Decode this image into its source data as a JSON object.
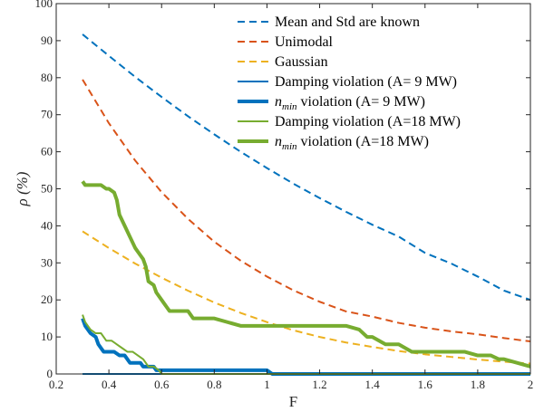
{
  "chart_data": {
    "type": "line",
    "xlabel": "F",
    "ylabel": "ρ (%)",
    "xlim": [
      0.2,
      2
    ],
    "ylim": [
      0,
      100
    ],
    "xticks": [
      0.2,
      0.4,
      0.6,
      0.8,
      1,
      1.2,
      1.4,
      1.6,
      1.8,
      2
    ],
    "xtick_labels": [
      "0.2",
      "0.4",
      "0.6",
      "0.8",
      "1",
      "1.2",
      "1.4",
      "1.6",
      "1.8",
      "2"
    ],
    "yticks": [
      0,
      10,
      20,
      30,
      40,
      50,
      60,
      70,
      80,
      90,
      100
    ],
    "ytick_labels": [
      "0",
      "10",
      "20",
      "30",
      "40",
      "50",
      "60",
      "70",
      "80",
      "90",
      "100"
    ],
    "grid": false,
    "legend_position": "top-right",
    "series": [
      {
        "name": "Mean and Std are known",
        "color": "#0072BD",
        "dash": "dashed",
        "weight": "thin",
        "x": [
          0.3,
          0.4,
          0.5,
          0.6,
          0.7,
          0.8,
          0.9,
          1.0,
          1.1,
          1.2,
          1.3,
          1.4,
          1.5,
          1.6,
          1.7,
          1.8,
          1.9,
          2.0
        ],
        "y": [
          91.7,
          85.9,
          80.2,
          74.8,
          69.6,
          64.7,
          60.0,
          55.6,
          51.4,
          47.5,
          43.8,
          40.3,
          37.1,
          32.7,
          29.8,
          26.3,
          22.5,
          20.0
        ]
      },
      {
        "name": "Unimodal",
        "color": "#D95319",
        "dash": "dashed",
        "weight": "thin",
        "x": [
          0.3,
          0.4,
          0.5,
          0.6,
          0.7,
          0.8,
          0.9,
          1.0,
          1.1,
          1.2,
          1.3,
          1.4,
          1.5,
          1.6,
          1.7,
          1.8,
          1.9,
          2.0
        ],
        "y": [
          79.5,
          67.7,
          57.6,
          49.1,
          41.9,
          35.7,
          30.6,
          26.3,
          22.6,
          19.5,
          16.9,
          15.5,
          13.8,
          12.5,
          11.5,
          10.7,
          9.7,
          8.8
        ]
      },
      {
        "name": "Gaussian",
        "color": "#EDB120",
        "dash": "dashed",
        "weight": "thin",
        "x": [
          0.3,
          0.4,
          0.5,
          0.6,
          0.7,
          0.8,
          0.9,
          1.0,
          1.1,
          1.2,
          1.3,
          1.4,
          1.5,
          1.6,
          1.7,
          1.8,
          1.9,
          2.0
        ],
        "y": [
          38.5,
          34.0,
          29.8,
          26.0,
          22.5,
          19.3,
          16.5,
          14.0,
          11.8,
          10.0,
          8.5,
          7.3,
          6.2,
          5.3,
          4.6,
          3.9,
          3.3,
          2.8
        ]
      },
      {
        "name": "Damping violation (A= 9 MW)",
        "color": "#0072BD",
        "dash": "solid",
        "weight": "thin",
        "x": [
          0.3,
          1.0,
          2.0
        ],
        "y": [
          0,
          0,
          0
        ]
      },
      {
        "name": "n_min violation (A= 9 MW)",
        "color": "#0072BD",
        "dash": "solid",
        "weight": "thick",
        "x": [
          0.3,
          0.31,
          0.33,
          0.35,
          0.36,
          0.37,
          0.38,
          0.39,
          0.4,
          0.42,
          0.44,
          0.46,
          0.48,
          0.5,
          0.52,
          0.53,
          0.55,
          0.57,
          0.58,
          0.6,
          0.9,
          1.0,
          1.02,
          2.0
        ],
        "y": [
          15,
          13,
          11,
          10,
          8,
          7,
          6,
          6,
          6,
          6,
          5,
          5,
          3,
          3,
          3,
          2,
          2,
          2,
          1,
          1,
          1,
          1,
          0,
          0
        ]
      },
      {
        "name": "Damping violation (A=18 MW)",
        "color": "#77AC30",
        "dash": "solid",
        "weight": "thin",
        "x": [
          0.3,
          0.31,
          0.33,
          0.35,
          0.37,
          0.39,
          0.41,
          0.43,
          0.45,
          0.47,
          0.49,
          0.51,
          0.53,
          0.55,
          0.57,
          0.59,
          0.6,
          2.0
        ],
        "y": [
          16,
          14,
          12,
          11,
          11,
          9,
          9,
          8,
          7,
          6,
          6,
          5,
          4,
          2,
          2,
          1,
          0,
          0
        ]
      },
      {
        "name": "n_min violation (A=18 MW)",
        "color": "#77AC30",
        "dash": "solid",
        "weight": "thick",
        "x": [
          0.3,
          0.31,
          0.35,
          0.37,
          0.39,
          0.4,
          0.42,
          0.43,
          0.44,
          0.46,
          0.48,
          0.5,
          0.52,
          0.53,
          0.54,
          0.55,
          0.57,
          0.58,
          0.6,
          0.61,
          0.62,
          0.63,
          0.65,
          0.7,
          0.72,
          0.75,
          0.8,
          0.85,
          0.9,
          1.0,
          1.1,
          1.2,
          1.3,
          1.35,
          1.38,
          1.4,
          1.45,
          1.5,
          1.55,
          1.6,
          1.7,
          1.75,
          1.8,
          1.85,
          1.88,
          1.9,
          2.0
        ],
        "y": [
          52,
          51,
          51,
          51,
          50,
          50,
          49,
          47,
          43,
          40,
          37,
          34,
          32,
          31,
          29,
          25,
          24,
          22,
          20,
          19,
          18,
          17,
          17,
          17,
          15,
          15,
          15,
          14,
          13,
          13,
          13,
          13,
          13,
          12,
          10,
          10,
          8,
          8,
          6,
          6,
          6,
          6,
          5,
          5,
          4,
          4,
          2
        ]
      }
    ]
  }
}
